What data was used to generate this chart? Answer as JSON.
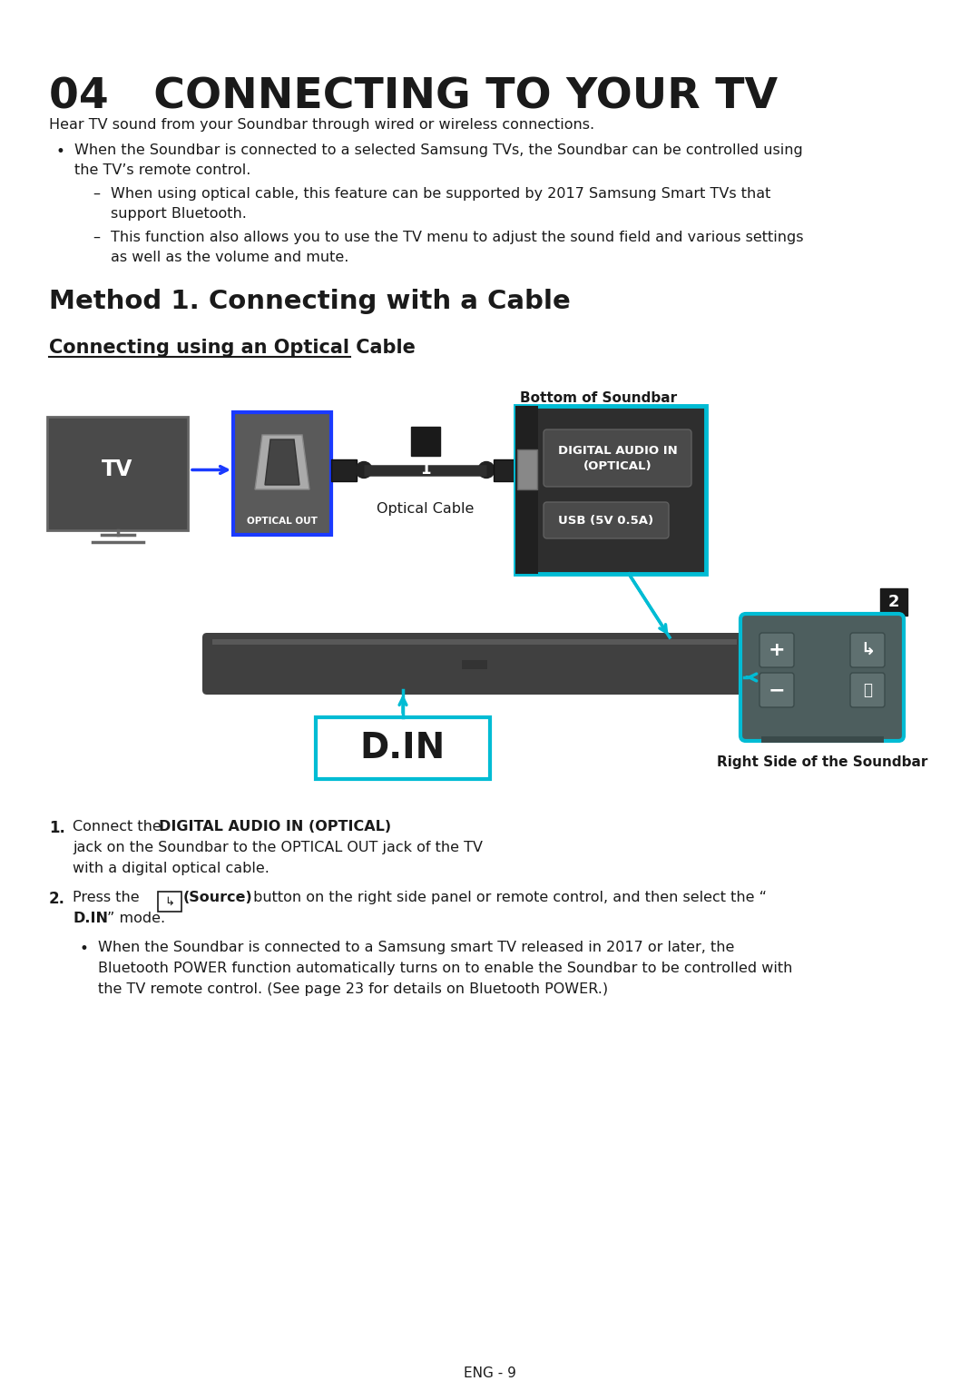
{
  "title": "04   CONNECTING TO YOUR TV",
  "intro_text": "Hear TV sound from your Soundbar through wired or wireless connections.",
  "bullet1_line1": "When the Soundbar is connected to a selected Samsung TVs, the Soundbar can be controlled using",
  "bullet1_line2": "the TV’s remote control.",
  "sub1_line1": "When using optical cable, this feature can be supported by 2017 Samsung Smart TVs that",
  "sub1_line2": "support Bluetooth.",
  "sub2_line1": "This function also allows you to use the TV menu to adjust the sound field and various settings",
  "sub2_line2": "as well as the volume and mute.",
  "method_title": "Method 1. Connecting with a Cable",
  "sub_section_title": "Connecting using an Optical Cable",
  "label_bottom": "Bottom of Soundbar",
  "label_optical_cable": "Optical Cable",
  "label_optical_out": "OPTICAL OUT",
  "label_digital_audio_line1": "DIGITAL AUDIO IN",
  "label_digital_audio_line2": "(OPTICAL)",
  "label_usb": "USB (5V 0.5A)",
  "label_tv": "TV",
  "label_din": "D.IN",
  "label_right_side": "Right Side of the Soundbar",
  "footer": "ENG - 9",
  "bg_color": "#ffffff",
  "text_color": "#1a1a1a",
  "cyan_color": "#00bcd4",
  "blue_color": "#1a3aff",
  "dark_gray": "#3a3a3a",
  "dark_bg": "#404040",
  "panel_bg": "#383838",
  "panel_bg2": "#424242",
  "badge_bg": "#1a1a1a"
}
